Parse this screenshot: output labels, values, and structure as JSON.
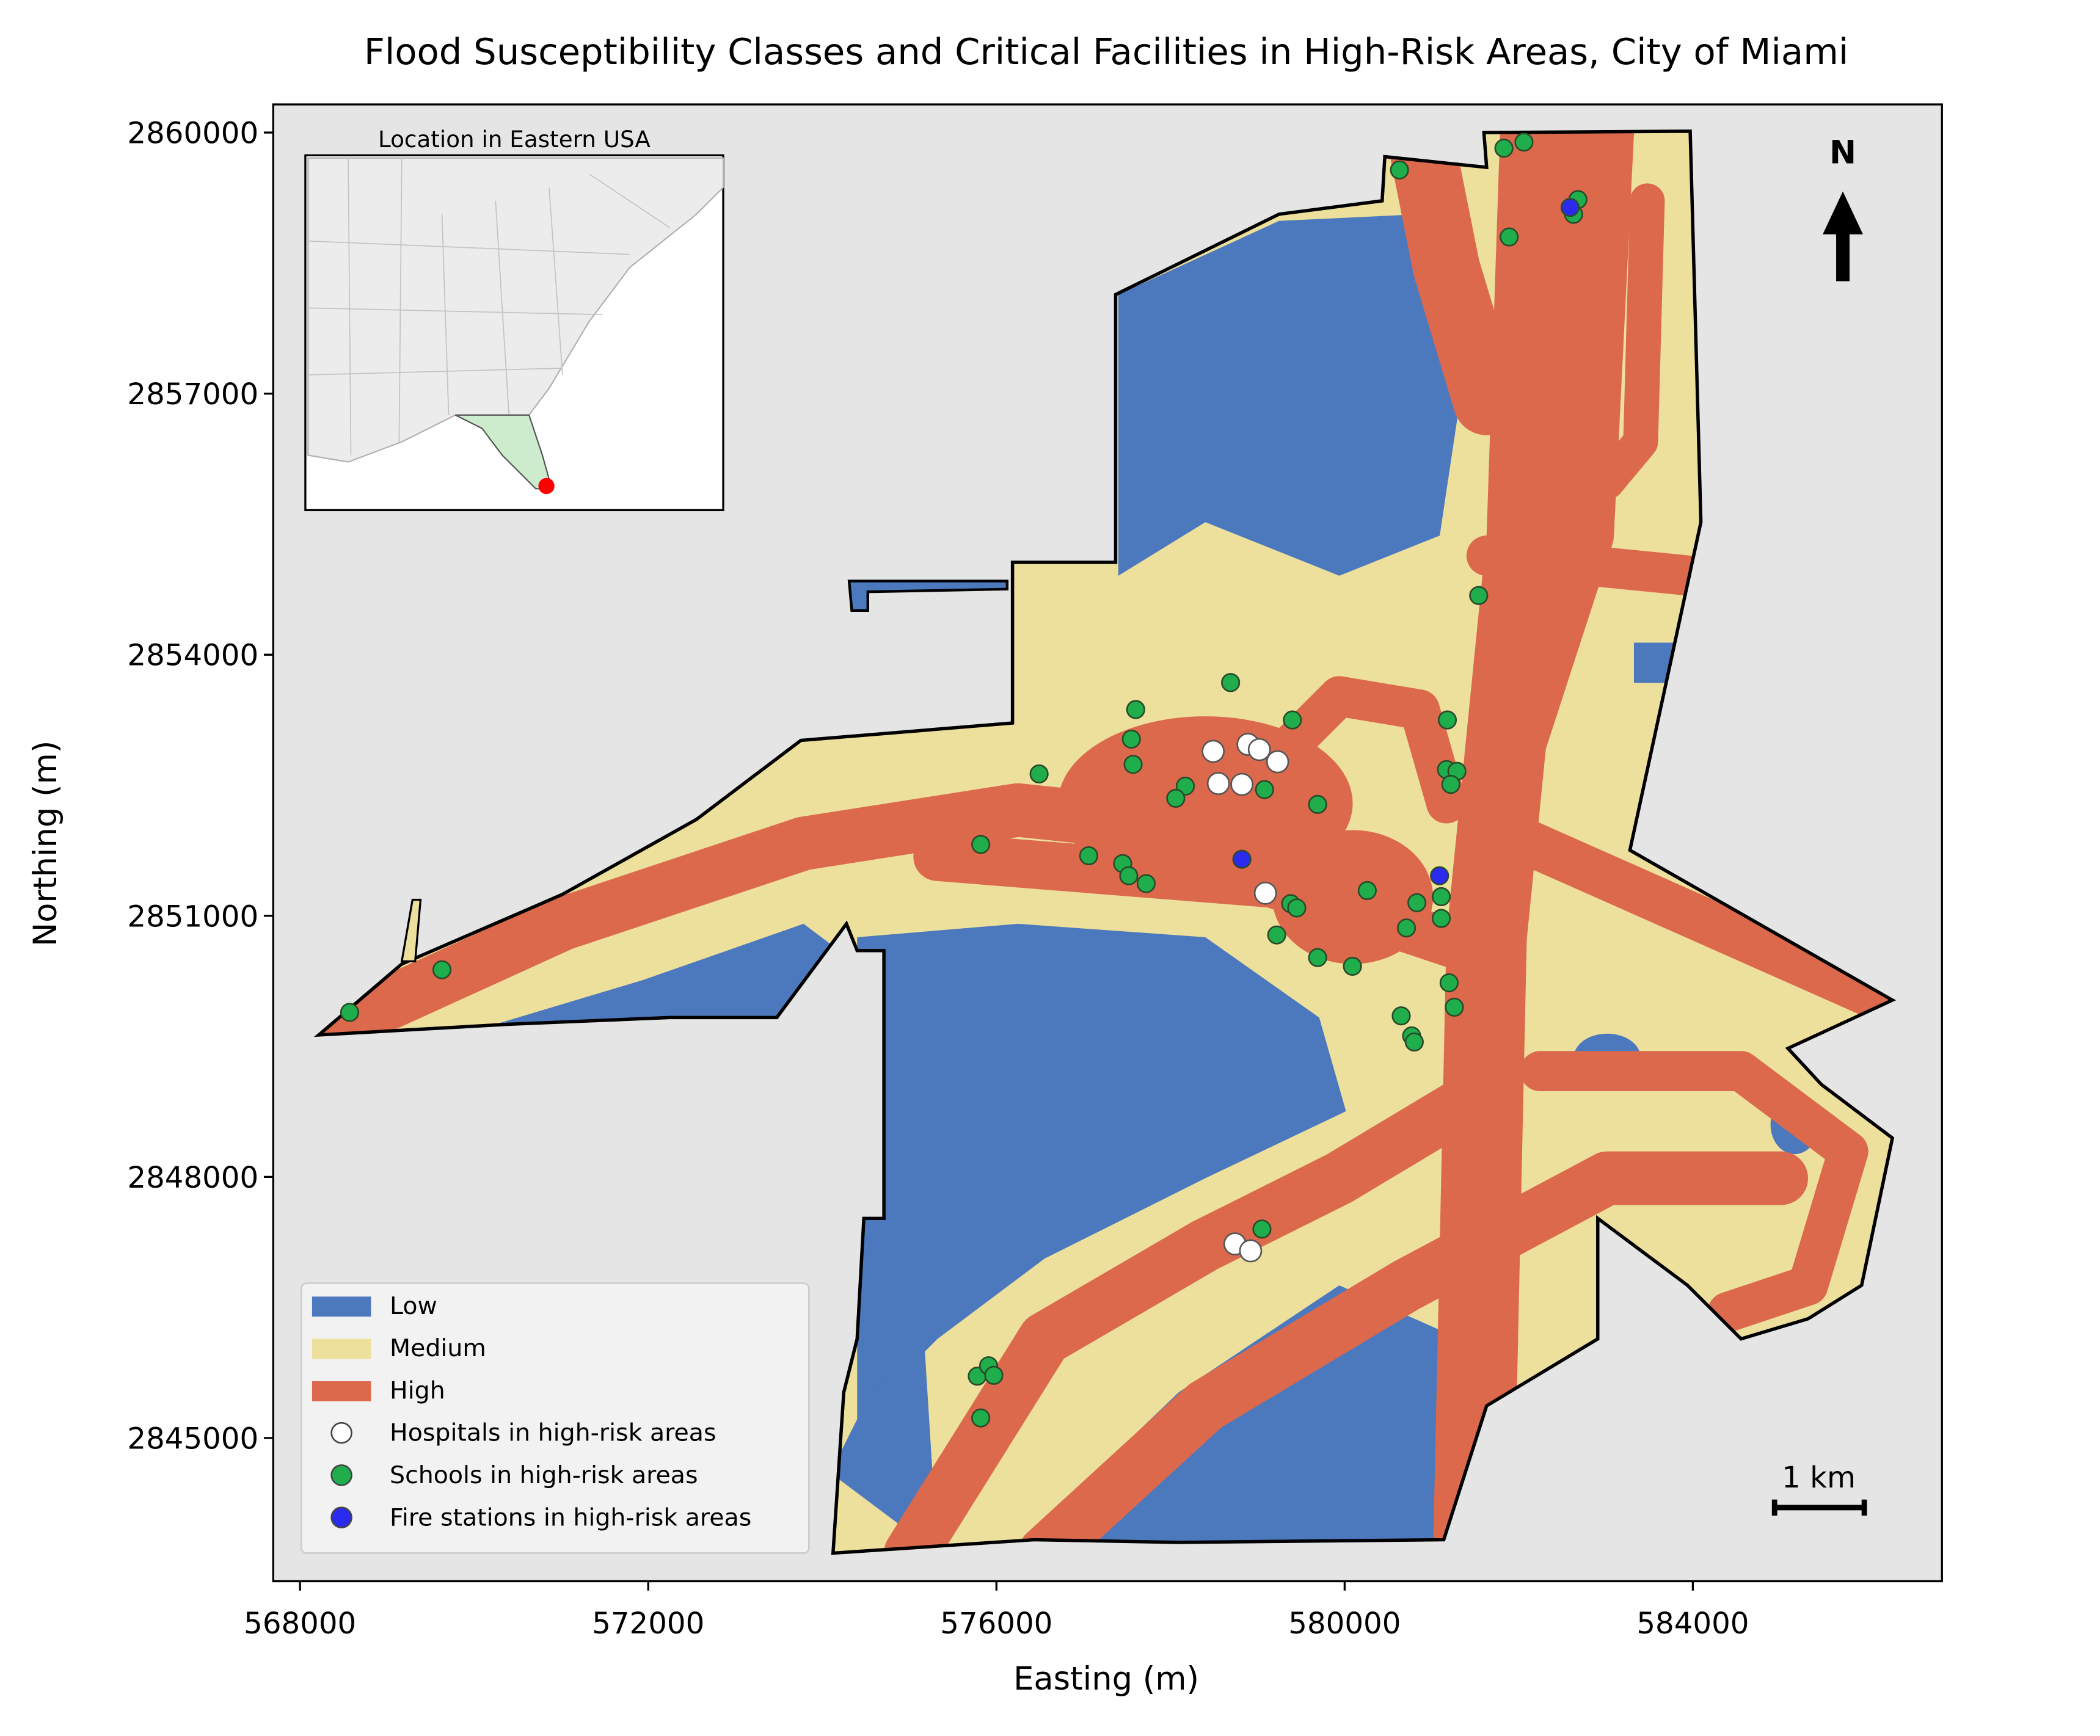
{
  "chart_data": {
    "type": "map",
    "title": "Flood Susceptibility Classes and Critical Facilities in High-Risk Areas, City of Miami",
    "x_label": "Easting (m)",
    "y_label": "Northing (m)",
    "xlim": [
      567692,
      586862
    ],
    "ylim": [
      2843354,
      2860323
    ],
    "xticks": [
      568000,
      572000,
      576000,
      580000,
      584000
    ],
    "yticks": [
      2845000,
      2848000,
      2851000,
      2854000,
      2857000,
      2860000
    ],
    "legend": "lower left",
    "classes": [
      {
        "name": "Low",
        "color": "#4c78bd"
      },
      {
        "name": "Medium",
        "color": "#eddf9c"
      },
      {
        "name": "High",
        "color": "#dc694c"
      }
    ],
    "series": [
      {
        "name": "Hospitals in high-risk areas",
        "color": "#ffffff",
        "x": [
          578490,
          578890,
          579020,
          579230,
          578550,
          578820,
          579090,
          578740,
          578920
        ],
        "y": [
          2852890,
          2852970,
          2852910,
          2852770,
          2852520,
          2852510,
          2851260,
          2847230,
          2847150
        ]
      },
      {
        "name": "Schools in high-risk areas",
        "color": "#1fae4b",
        "x": [
          568570,
          569630,
          580630,
          581830,
          582060,
          581890,
          582680,
          582630,
          581540,
          578690,
          577600,
          579400,
          577550,
          577570,
          581180,
          576490,
          578170,
          578060,
          579080,
          579690,
          581170,
          581290,
          581220,
          575820,
          577060,
          577450,
          577520,
          577720,
          580260,
          579380,
          579450,
          580830,
          581110,
          580710,
          581110,
          579220,
          579690,
          580090,
          581200,
          581260,
          580650,
          580770,
          580800,
          579050,
          575780,
          575910,
          575970,
          575820
        ],
        "y": [
          2849890,
          2850380,
          2859570,
          2859820,
          2859890,
          2858800,
          2859230,
          2859060,
          2854680,
          2853680,
          2853370,
          2853250,
          2853030,
          2852740,
          2853250,
          2852630,
          2852490,
          2852350,
          2852450,
          2852280,
          2852680,
          2852660,
          2852510,
          2851820,
          2851690,
          2851600,
          2851460,
          2851370,
          2851290,
          2851140,
          2851090,
          2851150,
          2851220,
          2850860,
          2850970,
          2850780,
          2850520,
          2850420,
          2850230,
          2849950,
          2849850,
          2849620,
          2849550,
          2847400,
          2845710,
          2845830,
          2845720,
          2845230
        ]
      },
      {
        "name": "Fire stations in high-risk areas",
        "color": "#2b2bf0",
        "x": [
          582590,
          578820,
          581090
        ],
        "y": [
          2859140,
          2851650,
          2851460
        ]
      }
    ],
    "inset_title": "Location in Eastern USA",
    "north_label": "N",
    "scale_label": "1 km"
  }
}
